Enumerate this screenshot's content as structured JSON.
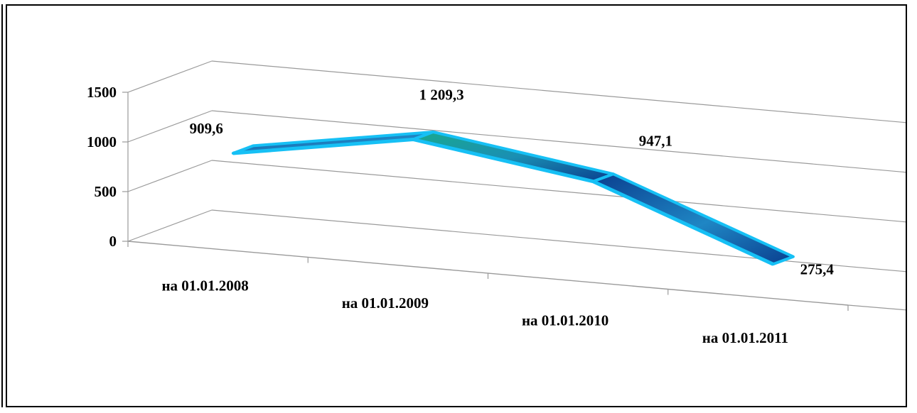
{
  "chart_data": {
    "type": "line",
    "style": "3d-line",
    "categories": [
      "на 01.01.2008",
      "на 01.01.2009",
      "на 01.01.2010",
      "на 01.01.2011"
    ],
    "series": [
      {
        "values": [
          909.6,
          1209.3,
          947.1,
          275.4
        ]
      }
    ],
    "data_labels": [
      "909,6",
      "1 209,3",
      "947,1",
      "275,4"
    ],
    "y_ticks": [
      0,
      500,
      1000,
      1500
    ],
    "y_tick_labels": [
      "0",
      "500",
      "1000",
      "1500"
    ],
    "ylim": [
      0,
      1500
    ],
    "title": "",
    "xlabel": "",
    "ylabel": "",
    "grid": true,
    "legend": "none",
    "colors": {
      "ribbon_dark": "#0a3f8f",
      "ribbon_mid": "#1f86c4",
      "ribbon_green": "#1aa98f",
      "ribbon_edge": "#16c0f5",
      "grid": "#9a9a9a"
    }
  }
}
